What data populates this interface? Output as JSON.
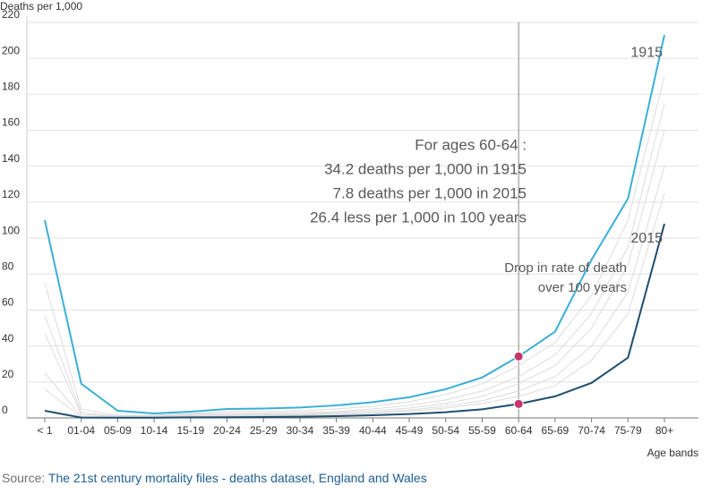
{
  "chart_data": {
    "type": "line",
    "y_label": "Deaths per 1,000",
    "x_label": "Age bands",
    "categories": [
      "< 1",
      "01-04",
      "05-09",
      "10-14",
      "15-19",
      "20-24",
      "25-29",
      "30-34",
      "35-39",
      "40-44",
      "45-49",
      "50-54",
      "55-59",
      "60-64",
      "65-69",
      "70-74",
      "75-79",
      "80+"
    ],
    "series": [
      {
        "color": "#dcdcdc",
        "values": [
          75,
          5,
          1.5,
          1.5,
          2.5,
          3.5,
          3.5,
          4,
          5,
          6.5,
          9,
          13,
          19,
          29,
          42,
          68,
          110,
          190
        ]
      },
      {
        "color": "#dcdcdc",
        "values": [
          57,
          3,
          1,
          1,
          2,
          2.5,
          2.5,
          3,
          3.5,
          5,
          7,
          10,
          15,
          23,
          35,
          58,
          95,
          175
        ]
      },
      {
        "color": "#dcdcdc",
        "values": [
          47,
          2,
          0.8,
          0.8,
          1.5,
          1.8,
          2,
          2.2,
          3,
          4,
          5.5,
          8,
          12,
          19,
          29,
          50,
          85,
          160
        ]
      },
      {
        "color": "#dcdcdc",
        "values": [
          25,
          1,
          0.5,
          0.5,
          1,
          1.2,
          1.5,
          1.8,
          2.3,
          3,
          4.5,
          6.5,
          9.5,
          15,
          23,
          40,
          70,
          140
        ]
      },
      {
        "color": "#dcdcdc",
        "values": [
          16,
          0.5,
          0.3,
          0.3,
          0.8,
          1,
          1.2,
          1.4,
          2,
          2.6,
          3.8,
          5.5,
          8,
          12,
          18,
          32,
          58,
          125
        ]
      },
      {
        "name": "1915",
        "color": "#3bafd6",
        "values": [
          110,
          19,
          4,
          2.5,
          3.5,
          5,
          5.2,
          5.8,
          7,
          8.8,
          11.5,
          16,
          22.5,
          34.2,
          48,
          88,
          122,
          213
        ]
      },
      {
        "name": "2015",
        "color": "#1f4e6e",
        "values": [
          4,
          0.2,
          0.1,
          0.1,
          0.3,
          0.4,
          0.5,
          0.7,
          1,
          1.5,
          2.2,
          3.2,
          4.8,
          7.8,
          12,
          19.5,
          33.5,
          108
        ]
      }
    ],
    "ylim": [
      0,
      220
    ],
    "yticks": [
      0,
      20,
      40,
      60,
      80,
      100,
      120,
      140,
      160,
      180,
      200,
      220
    ],
    "grid": true,
    "highlight_category": "60-64",
    "highlight_color": "#c8336b",
    "annotations": [
      "For ages 60-64 :",
      "34.2 deaths per 1,000 in 1915",
      "7.8 deaths per 1,000 in 2015",
      "26.4 less per 1,000 in 100 years"
    ],
    "drop_note": [
      "Drop in rate of death",
      "over 100 years"
    ]
  },
  "source": {
    "prefix": "Source:",
    "link": "The 21st century mortality files - deaths dataset, England and Wales"
  }
}
